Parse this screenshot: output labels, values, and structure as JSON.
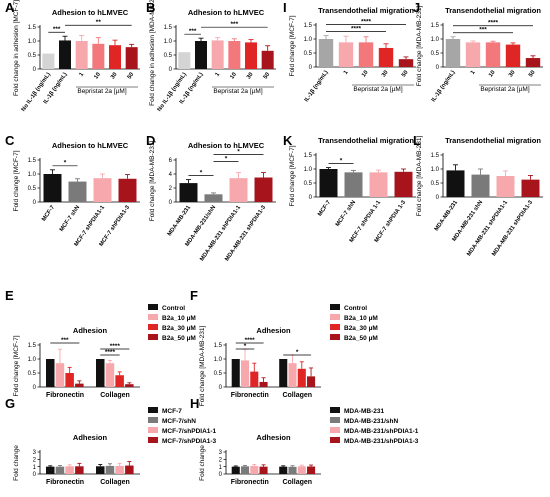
{
  "palette": {
    "black": "#111111",
    "gray": "#a6a6a6",
    "lightgray": "#d4d4d4",
    "pink": "#f7a8ad",
    "salmon": "#f2787c",
    "red": "#e02525",
    "darkred": "#a8141c",
    "darkgray": "#7a7a7a"
  },
  "chart_data": [
    {
      "panel": "A",
      "type": "bar",
      "title": "Adhesion to hLMVEC",
      "ylabel": "Fold change in adhesion [MCF-7]",
      "xlabel": "Bepristat 2a [µM]",
      "ylim": [
        0,
        1.5
      ],
      "yticks": [
        0,
        0.5,
        1.0,
        1.5
      ],
      "categories": [
        "No IL-1β (ng/mL)",
        "IL-1β (ng/mL)",
        "1",
        "10",
        "30",
        "50"
      ],
      "rotate_labels": true,
      "values": [
        0.55,
        1.02,
        1.0,
        0.9,
        0.85,
        0.78
      ],
      "errors": [
        0.0,
        0.15,
        0.2,
        0.22,
        0.18,
        0.1
      ],
      "colors": [
        "lightgray",
        "black",
        "pink",
        "salmon",
        "red",
        "darkred"
      ],
      "significance": [
        {
          "from": 0,
          "to": 1,
          "label": "***"
        },
        {
          "from": 1,
          "to": 5,
          "label": "**"
        }
      ]
    },
    {
      "panel": "B",
      "type": "bar",
      "title": "Adhesion to hLMVEC",
      "ylabel": "Fold change in adhesion [MDA-MB-231]",
      "xlabel": "Bepristat 2a [µM]",
      "ylim": [
        0,
        1.5
      ],
      "yticks": [
        0,
        0.5,
        1.0,
        1.5
      ],
      "categories": [
        "No IL-1β (ng/mL)",
        "IL-1β (ng/mL)",
        "1",
        "10",
        "30",
        "50"
      ],
      "rotate_labels": true,
      "values": [
        0.6,
        1.0,
        1.02,
        1.0,
        0.95,
        0.65
      ],
      "errors": [
        0.0,
        0.1,
        0.1,
        0.08,
        0.1,
        0.18
      ],
      "colors": [
        "lightgray",
        "black",
        "pink",
        "salmon",
        "red",
        "darkred"
      ],
      "significance": [
        {
          "from": 0,
          "to": 1,
          "label": "***"
        },
        {
          "from": 1,
          "to": 5,
          "label": "***"
        }
      ]
    },
    {
      "panel": "C",
      "type": "bar",
      "title": "Adhesion to hLMVEC",
      "ylabel": "Fold change [MCF-7]",
      "xlabel": "",
      "ylim": [
        0,
        1.5
      ],
      "yticks": [
        0,
        0.5,
        1.0,
        1.5
      ],
      "categories": [
        "MCF-7",
        "MCF-7 shN",
        "MCF-7 shPDIA1-1",
        "MCF-7 shPDIA1-3"
      ],
      "rotate_labels": true,
      "values": [
        1.0,
        0.73,
        0.85,
        0.83
      ],
      "errors": [
        0.15,
        0.1,
        0.15,
        0.15
      ],
      "colors": [
        "black",
        "darkgray",
        "pink",
        "darkred"
      ],
      "significance": [
        {
          "from": 0,
          "to": 1,
          "label": "*"
        }
      ]
    },
    {
      "panel": "D",
      "type": "bar",
      "title": "Adhesion to hLMVEC",
      "ylabel": "Fold change [MDA-MB-231]",
      "xlabel": "",
      "ylim": [
        0,
        6
      ],
      "yticks": [
        0,
        2,
        4,
        6
      ],
      "categories": [
        "MDA-MB-231",
        "MDA-MB-231/shN",
        "MDA-MB-231 shPDIA1-1",
        "MDA-MB-231 shPDIA1-3"
      ],
      "rotate_labels": true,
      "values": [
        2.7,
        1.1,
        3.4,
        3.5
      ],
      "errors": [
        0.5,
        0.2,
        0.8,
        0.7
      ],
      "colors": [
        "black",
        "darkgray",
        "pink",
        "darkred"
      ],
      "significance": [
        {
          "from": 0,
          "to": 1,
          "label": "*"
        },
        {
          "from": 1,
          "to": 2,
          "label": "*"
        },
        {
          "from": 1,
          "to": 3,
          "label": "*"
        }
      ]
    },
    {
      "panel": "I",
      "type": "bar",
      "title": "Transendothelial migration",
      "ylabel": "Fold change [MCF-7]",
      "xlabel": "Bepristat 2a [µM]",
      "ylim": [
        0,
        1.5
      ],
      "yticks": [
        0,
        0.5,
        1.0,
        1.5
      ],
      "categories": [
        "IL-1β (ng/mL)",
        "1",
        "10",
        "30",
        "50"
      ],
      "rotate_labels": true,
      "values": [
        1.0,
        0.88,
        0.88,
        0.68,
        0.28
      ],
      "errors": [
        0.12,
        0.22,
        0.2,
        0.15,
        0.08
      ],
      "colors": [
        "gray",
        "pink",
        "salmon",
        "red",
        "darkred"
      ],
      "significance": [
        {
          "from": 0,
          "to": 3,
          "label": "****"
        },
        {
          "from": 0,
          "to": 4,
          "label": "****"
        }
      ]
    },
    {
      "panel": "J",
      "type": "bar",
      "title": "Transendothelial migration",
      "ylabel": "Fold change [MDA-MB-231]",
      "xlabel": "Bepristat 2a [µM]",
      "ylim": [
        0,
        1.5
      ],
      "yticks": [
        0,
        0.5,
        1.0,
        1.5
      ],
      "categories": [
        "IL-1β (ng/mL)",
        "1",
        "10",
        "30",
        "50"
      ],
      "rotate_labels": true,
      "values": [
        1.0,
        0.88,
        0.88,
        0.8,
        0.32
      ],
      "errors": [
        0.08,
        0.05,
        0.04,
        0.06,
        0.08
      ],
      "colors": [
        "gray",
        "pink",
        "salmon",
        "red",
        "darkred"
      ],
      "significance": [
        {
          "from": 0,
          "to": 3,
          "label": "***"
        },
        {
          "from": 0,
          "to": 4,
          "label": "****"
        }
      ]
    },
    {
      "panel": "K",
      "type": "bar",
      "title": "Transendothelial migration",
      "ylabel": "Fold change [MCF-7]",
      "xlabel": "",
      "ylim": [
        0,
        1.5
      ],
      "yticks": [
        0,
        0.5,
        1.0,
        1.5
      ],
      "categories": [
        "MCF-7",
        "MCF-7 shN",
        "MCF-7 shPDIA 1-1",
        "MCF-7 shPDIA 1-3"
      ],
      "rotate_labels": true,
      "values": [
        1.0,
        0.88,
        0.88,
        0.9
      ],
      "errors": [
        0.05,
        0.07,
        0.08,
        0.1
      ],
      "colors": [
        "black",
        "darkgray",
        "pink",
        "darkred"
      ],
      "significance": [
        {
          "from": 0,
          "to": 1,
          "label": "*"
        }
      ]
    },
    {
      "panel": "L",
      "type": "bar",
      "title": "Transendothelial migration",
      "ylabel": "Fold change [MDA-MB-231]",
      "xlabel": "",
      "ylim": [
        0,
        1.5
      ],
      "yticks": [
        0,
        0.5,
        1.0,
        1.5
      ],
      "categories": [
        "MDA-MB-231",
        "MDA-MB-231 shN",
        "MDA-MB-231 shPDIA1-1",
        "MDA-MB-231 shPDIA1-3"
      ],
      "rotate_labels": true,
      "values": [
        0.95,
        0.8,
        0.75,
        0.62
      ],
      "errors": [
        0.2,
        0.2,
        0.18,
        0.15
      ],
      "colors": [
        "black",
        "darkgray",
        "pink",
        "darkred"
      ],
      "significance": []
    },
    {
      "panel": "E",
      "type": "bar",
      "title": "Adhesion",
      "ylabel": "Fold change [MCF-7]",
      "xlabel": "",
      "ylim": [
        0,
        1.5
      ],
      "yticks": [
        0,
        0.5,
        1.0,
        1.5
      ],
      "groups": [
        "Fibronectin",
        "Collagen"
      ],
      "series": [
        {
          "name": "Control",
          "values": [
            1.0,
            1.0
          ],
          "errors": [
            0.0,
            0.0
          ],
          "color": "black"
        },
        {
          "name": "B2a_10 µM",
          "values": [
            0.85,
            0.85
          ],
          "errors": [
            0.5,
            0.1
          ],
          "color": "pink"
        },
        {
          "name": "B2a_30 µM",
          "values": [
            0.5,
            0.42
          ],
          "errors": [
            0.2,
            0.12
          ],
          "color": "red"
        },
        {
          "name": "B2a_50 µM",
          "values": [
            0.12,
            0.1
          ],
          "errors": [
            0.1,
            0.05
          ],
          "color": "darkred"
        }
      ],
      "significance": [
        {
          "from": [
            0,
            0
          ],
          "to": [
            0,
            3
          ],
          "label": "***"
        },
        {
          "from": [
            1,
            0
          ],
          "to": [
            1,
            3
          ],
          "label": "****"
        },
        {
          "from": [
            1,
            0
          ],
          "to": [
            1,
            2
          ],
          "label": "****"
        }
      ]
    },
    {
      "panel": "F",
      "type": "bar",
      "title": "Adhesion",
      "ylabel": "Fold change [MDA-MB-231]",
      "xlabel": "",
      "ylim": [
        0,
        1.5
      ],
      "yticks": [
        0,
        0.5,
        1.0,
        1.5
      ],
      "groups": [
        "Fibronectin",
        "Collagen"
      ],
      "series": [
        {
          "name": "Control",
          "values": [
            1.0,
            1.0
          ],
          "errors": [
            0.0,
            0.0
          ],
          "color": "black"
        },
        {
          "name": "B2a_10 µM",
          "values": [
            0.95,
            0.85
          ],
          "errors": [
            0.4,
            0.3
          ],
          "color": "pink"
        },
        {
          "name": "B2a_30 µM",
          "values": [
            0.55,
            0.65
          ],
          "errors": [
            0.3,
            0.25
          ],
          "color": "red"
        },
        {
          "name": "B2a_50 µM",
          "values": [
            0.18,
            0.38
          ],
          "errors": [
            0.15,
            0.3
          ],
          "color": "darkred"
        }
      ],
      "significance": [
        {
          "from": [
            0,
            0
          ],
          "to": [
            0,
            3
          ],
          "label": "****"
        },
        {
          "from": [
            0,
            0
          ],
          "to": [
            0,
            2
          ],
          "label": "*"
        },
        {
          "from": [
            1,
            0
          ],
          "to": [
            1,
            3
          ],
          "label": "*"
        }
      ]
    },
    {
      "panel": "G",
      "type": "bar",
      "title": "Adhesion",
      "ylabel": "Fold change",
      "xlabel": "",
      "ylim": [
        0,
        3
      ],
      "yticks": [
        0,
        1,
        2,
        3
      ],
      "groups": [
        "Fibronectin",
        "Collagen"
      ],
      "series": [
        {
          "name": "MCF-7",
          "values": [
            1.0,
            1.05
          ],
          "errors": [
            0.12,
            0.25
          ],
          "color": "black"
        },
        {
          "name": "MCF-7/shN",
          "values": [
            1.0,
            1.1
          ],
          "errors": [
            0.15,
            0.3
          ],
          "color": "darkgray"
        },
        {
          "name": "MCF-7/shPDIA1-1",
          "values": [
            1.05,
            1.1
          ],
          "errors": [
            0.2,
            0.35
          ],
          "color": "pink"
        },
        {
          "name": "MCF-7/shPDIA1-3",
          "values": [
            1.05,
            1.15
          ],
          "errors": [
            0.4,
            0.55
          ],
          "color": "darkred"
        }
      ],
      "significance": []
    },
    {
      "panel": "H",
      "type": "bar",
      "title": "Adhesion",
      "ylabel": "Fold change",
      "xlabel": "",
      "ylim": [
        0,
        3
      ],
      "yticks": [
        0,
        1,
        2,
        3
      ],
      "groups": [
        "Fibronectin",
        "Collagen"
      ],
      "series": [
        {
          "name": "MDA-MB-231",
          "values": [
            1.0,
            1.0
          ],
          "errors": [
            0.1,
            0.12
          ],
          "color": "black"
        },
        {
          "name": "MDA-MB-231/shN",
          "values": [
            1.05,
            0.98
          ],
          "errors": [
            0.12,
            0.15
          ],
          "color": "darkgray"
        },
        {
          "name": "MDA-MB-231/shPDIA1-1",
          "values": [
            1.1,
            1.05
          ],
          "errors": [
            0.2,
            0.15
          ],
          "color": "pink"
        },
        {
          "name": "MDA-MB-231/shPDIA1-3",
          "values": [
            1.0,
            1.02
          ],
          "errors": [
            0.25,
            0.2
          ],
          "color": "darkred"
        }
      ],
      "significance": []
    }
  ]
}
